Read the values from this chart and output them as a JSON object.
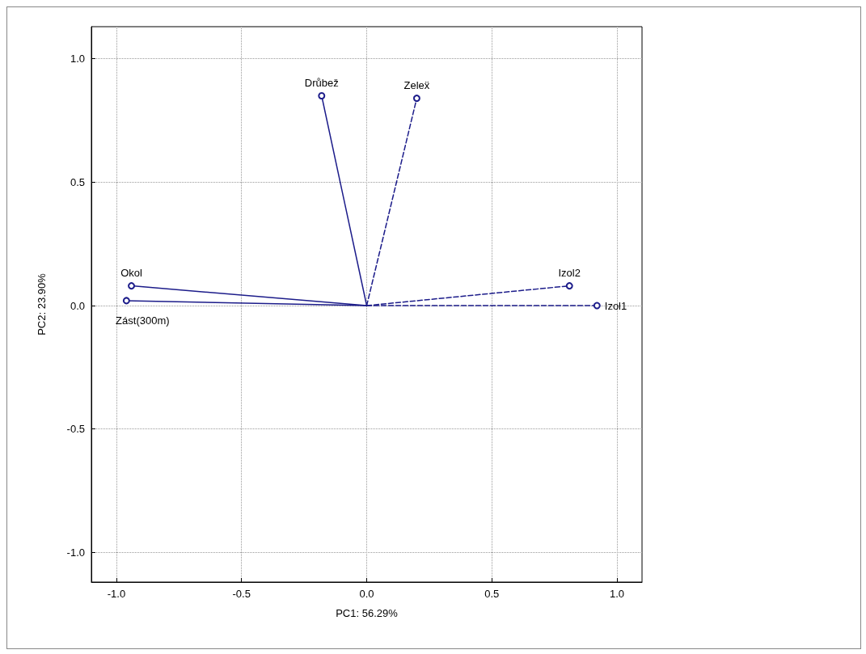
{
  "chart_data": {
    "type": "line",
    "xlabel": "PC1: 56.29%",
    "ylabel": "PC2: 23.90%",
    "xlim": [
      -1.1,
      1.1
    ],
    "ylim": [
      -1.12,
      1.13
    ],
    "xticks": [
      {
        "value": -1,
        "label": "-1.0"
      },
      {
        "value": -0.5,
        "label": "-0.5"
      },
      {
        "value": 0,
        "label": "0.0"
      },
      {
        "value": 0.5,
        "label": "0.5"
      },
      {
        "value": 1,
        "label": "1.0"
      }
    ],
    "yticks": [
      {
        "value": -1,
        "label": "-1.0"
      },
      {
        "value": -0.5,
        "label": "-0.5"
      },
      {
        "value": 0,
        "label": "0.0"
      },
      {
        "value": 0.5,
        "label": "0.5"
      },
      {
        "value": 1,
        "label": "1.0"
      }
    ],
    "grid": true,
    "legend": false,
    "marker": "circle",
    "series": [
      {
        "name": "Drůbež",
        "color": "#1c1c8a",
        "x": [
          0,
          -0.18
        ],
        "values": [
          0,
          0.85
        ],
        "line_style": "solid"
      },
      {
        "name": "Zeleẍ",
        "color": "#1c1c8a",
        "x": [
          0,
          0.2
        ],
        "values": [
          0,
          0.84
        ],
        "line_style": "dashed"
      },
      {
        "name": "Okol",
        "color": "#1c1c8a",
        "x": [
          0,
          -0.94
        ],
        "values": [
          0,
          0.08
        ],
        "line_style": "solid"
      },
      {
        "name": "Zást(300m)",
        "color": "#1c1c8a",
        "x": [
          0,
          -0.96
        ],
        "values": [
          0,
          0.02
        ],
        "line_style": "solid"
      },
      {
        "name": "Izol2",
        "color": "#1c1c8a",
        "x": [
          0,
          0.81
        ],
        "values": [
          0,
          0.08
        ],
        "line_style": "dashed"
      },
      {
        "name": "Izol1",
        "color": "#1c1c8a",
        "x": [
          0,
          0.92
        ],
        "values": [
          0,
          0.0
        ],
        "line_style": "dashed"
      }
    ]
  }
}
